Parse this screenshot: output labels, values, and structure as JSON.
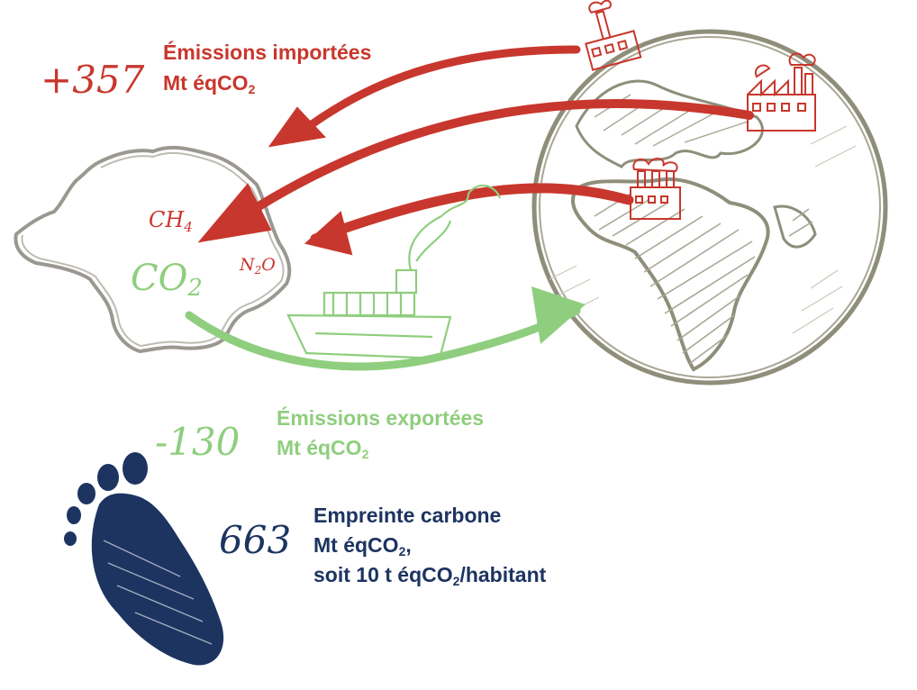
{
  "imported": {
    "value": "+357",
    "title": "Émissions importées",
    "unit_prefix": "Mt éqCO",
    "unit_sub": "2",
    "color": "#c8372d"
  },
  "exported": {
    "value": "-130",
    "title": "Émissions exportées",
    "unit_prefix": "Mt éqCO",
    "unit_sub": "2",
    "color": "#8fce7e"
  },
  "footprint": {
    "value": "663",
    "title": "Empreinte carbone",
    "line2_prefix": "Mt éqCO",
    "line2_sub": "2",
    "line2_suffix": ",",
    "line3_prefix": "soit 10 t éqCO",
    "line3_sub": "2",
    "line3_suffix": "/habitant",
    "color": "#1d3461"
  },
  "gases": {
    "ch4_base": "CH",
    "ch4_sub": "4",
    "n2o_a": "N",
    "n2o_sub": "2",
    "n2o_b": "O",
    "co2_base": "CO",
    "co2_sub": "2"
  },
  "icons": [
    "france-map-icon",
    "globe-icon",
    "factory-icon",
    "cargo-ship-icon",
    "footprint-icon",
    "import-arrow-icon",
    "export-arrow-icon"
  ],
  "colors": {
    "map_outline": "#9a9890",
    "globe_outline": "#8f8e7a",
    "globe_land": "#a8a795"
  }
}
